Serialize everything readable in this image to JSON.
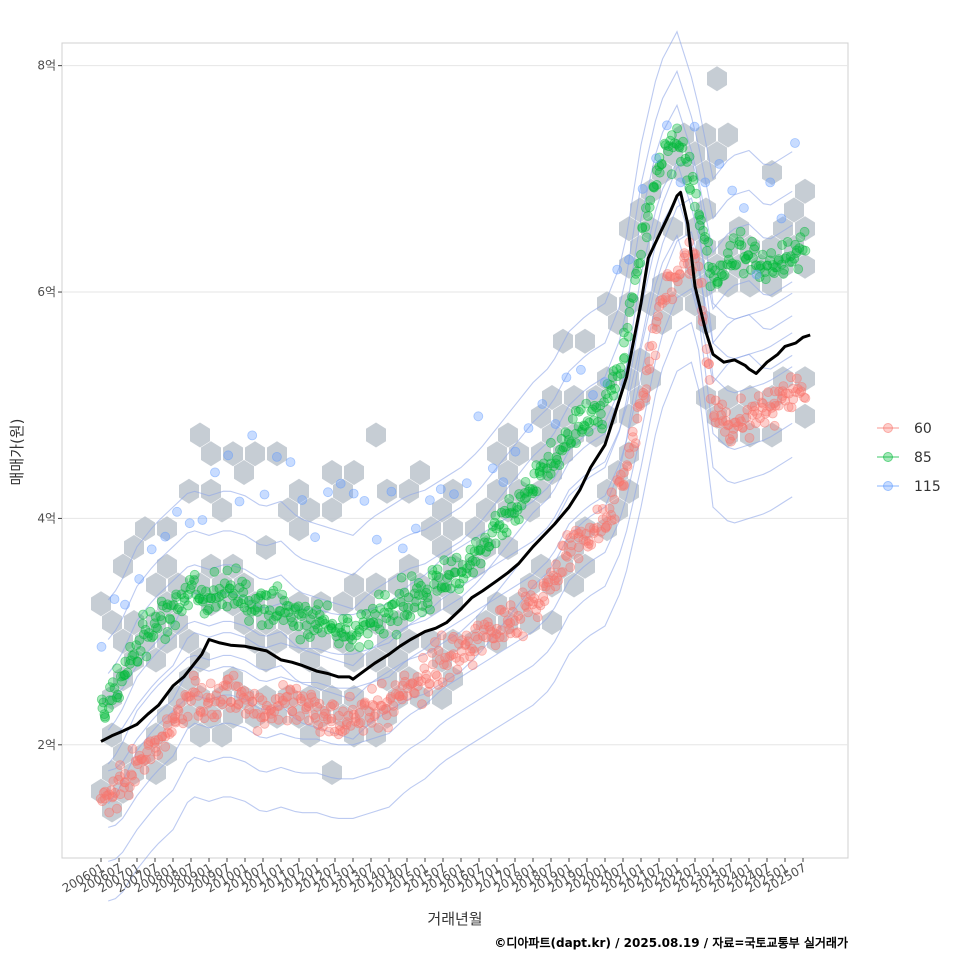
{
  "chart_data": {
    "type": "scatter",
    "xlabel": "거래년월",
    "ylabel": "매매가(원)",
    "caption": "©디아파트(dapt.kr) / 2025.08.19 / 자료=국토교통부 실거래가",
    "legend_position": "right",
    "grid": true,
    "xlim": [
      "2006-01",
      "2025-07"
    ],
    "ylim": [
      1.0,
      8.2
    ],
    "y_ticks": [
      {
        "value": 2,
        "label": "2억"
      },
      {
        "value": 4,
        "label": "4억"
      },
      {
        "value": 6,
        "label": "6억"
      },
      {
        "value": 8,
        "label": "8억"
      }
    ],
    "x_tick_labels": [
      "200601",
      "200607",
      "200701",
      "200707",
      "200801",
      "200807",
      "200901",
      "200907",
      "201001",
      "201007",
      "201101",
      "201107",
      "201201",
      "201207",
      "201301",
      "201307",
      "201401",
      "201407",
      "201501",
      "201507",
      "201601",
      "201607",
      "201701",
      "201707",
      "201801",
      "201807",
      "201901",
      "201907",
      "202001",
      "202007",
      "202101",
      "202107",
      "202201",
      "202207",
      "202301",
      "202307",
      "202401",
      "202407",
      "202501",
      "202507"
    ],
    "series": [
      {
        "name": "60",
        "color": "#f8766d",
        "trend": [
          [
            2006.0,
            1.5
          ],
          [
            2006.5,
            1.55
          ],
          [
            2007.0,
            1.8
          ],
          [
            2007.5,
            2.0
          ],
          [
            2008.0,
            2.15
          ],
          [
            2008.5,
            2.45
          ],
          [
            2009.0,
            2.4
          ],
          [
            2009.5,
            2.45
          ],
          [
            2010.0,
            2.4
          ],
          [
            2010.5,
            2.3
          ],
          [
            2011.0,
            2.35
          ],
          [
            2011.5,
            2.3
          ],
          [
            2012.0,
            2.3
          ],
          [
            2012.5,
            2.25
          ],
          [
            2013.0,
            2.25
          ],
          [
            2013.5,
            2.3
          ],
          [
            2014.0,
            2.35
          ],
          [
            2014.5,
            2.5
          ],
          [
            2015.0,
            2.6
          ],
          [
            2015.5,
            2.75
          ],
          [
            2016.0,
            2.85
          ],
          [
            2016.5,
            2.95
          ],
          [
            2017.0,
            3.05
          ],
          [
            2017.5,
            3.15
          ],
          [
            2018.0,
            3.25
          ],
          [
            2018.5,
            3.4
          ],
          [
            2019.0,
            3.7
          ],
          [
            2019.5,
            3.85
          ],
          [
            2020.0,
            3.95
          ],
          [
            2020.5,
            4.3
          ],
          [
            2021.0,
            5.0
          ],
          [
            2021.5,
            5.8
          ],
          [
            2022.0,
            6.2
          ],
          [
            2022.5,
            6.3
          ],
          [
            2023.0,
            5.0
          ],
          [
            2023.5,
            4.85
          ],
          [
            2024.0,
            4.9
          ],
          [
            2024.5,
            4.95
          ],
          [
            2025.0,
            5.05
          ],
          [
            2025.5,
            5.15
          ]
        ]
      },
      {
        "name": "85",
        "color": "#00ba38",
        "trend": [
          [
            2006.0,
            2.3
          ],
          [
            2006.5,
            2.5
          ],
          [
            2007.0,
            2.85
          ],
          [
            2007.5,
            3.05
          ],
          [
            2008.0,
            3.2
          ],
          [
            2008.5,
            3.35
          ],
          [
            2009.0,
            3.3
          ],
          [
            2009.5,
            3.35
          ],
          [
            2010.0,
            3.3
          ],
          [
            2010.5,
            3.2
          ],
          [
            2011.0,
            3.25
          ],
          [
            2011.5,
            3.1
          ],
          [
            2012.0,
            3.05
          ],
          [
            2012.5,
            3.0
          ],
          [
            2013.0,
            2.95
          ],
          [
            2013.5,
            3.1
          ],
          [
            2014.0,
            3.2
          ],
          [
            2014.5,
            3.3
          ],
          [
            2015.0,
            3.35
          ],
          [
            2015.5,
            3.45
          ],
          [
            2016.0,
            3.55
          ],
          [
            2016.5,
            3.7
          ],
          [
            2017.0,
            3.9
          ],
          [
            2017.5,
            4.1
          ],
          [
            2018.0,
            4.3
          ],
          [
            2018.5,
            4.45
          ],
          [
            2019.0,
            4.75
          ],
          [
            2019.5,
            4.9
          ],
          [
            2020.0,
            5.0
          ],
          [
            2020.5,
            5.4
          ],
          [
            2021.0,
            6.4
          ],
          [
            2021.5,
            7.1
          ],
          [
            2022.0,
            7.4
          ],
          [
            2022.5,
            6.9
          ],
          [
            2023.0,
            6.1
          ],
          [
            2023.5,
            6.3
          ],
          [
            2024.0,
            6.35
          ],
          [
            2024.5,
            6.2
          ],
          [
            2025.0,
            6.3
          ],
          [
            2025.5,
            6.4
          ]
        ]
      },
      {
        "name": "115",
        "color": "#619cff",
        "trend": [
          [
            2006.0,
            3.0
          ],
          [
            2007.0,
            3.6
          ],
          [
            2008.0,
            4.0
          ],
          [
            2009.0,
            4.45
          ],
          [
            2010.0,
            4.4
          ],
          [
            2011.0,
            4.3
          ],
          [
            2012.0,
            4.0
          ],
          [
            2013.0,
            4.05
          ],
          [
            2014.0,
            4.1
          ],
          [
            2015.0,
            4.15
          ],
          [
            2016.0,
            4.3
          ],
          [
            2017.0,
            4.5
          ],
          [
            2018.0,
            4.75
          ],
          [
            2019.0,
            5.2
          ],
          [
            2020.0,
            5.5
          ],
          [
            2021.0,
            6.9
          ],
          [
            2022.0,
            7.1
          ],
          [
            2023.0,
            7.4
          ],
          [
            2024.0,
            6.5
          ],
          [
            2025.0,
            6.85
          ]
        ]
      }
    ],
    "overall_trend_line": {
      "color": "#000000",
      "points": [
        [
          2006.0,
          2.03
        ],
        [
          2006.3,
          2.08
        ],
        [
          2006.6,
          2.12
        ],
        [
          2007.0,
          2.18
        ],
        [
          2007.3,
          2.27
        ],
        [
          2007.6,
          2.35
        ],
        [
          2008.0,
          2.52
        ],
        [
          2008.3,
          2.6
        ],
        [
          2008.6,
          2.72
        ],
        [
          2008.8,
          2.8
        ],
        [
          2009.0,
          2.93
        ],
        [
          2009.3,
          2.9
        ],
        [
          2009.6,
          2.88
        ],
        [
          2010.0,
          2.87
        ],
        [
          2010.3,
          2.85
        ],
        [
          2010.6,
          2.83
        ],
        [
          2011.0,
          2.75
        ],
        [
          2011.3,
          2.73
        ],
        [
          2011.6,
          2.7
        ],
        [
          2012.0,
          2.65
        ],
        [
          2012.3,
          2.63
        ],
        [
          2012.6,
          2.6
        ],
        [
          2012.9,
          2.6
        ],
        [
          2013.0,
          2.58
        ],
        [
          2013.3,
          2.65
        ],
        [
          2013.6,
          2.72
        ],
        [
          2014.0,
          2.8
        ],
        [
          2014.3,
          2.87
        ],
        [
          2014.6,
          2.93
        ],
        [
          2015.0,
          3.0
        ],
        [
          2015.3,
          3.03
        ],
        [
          2015.6,
          3.08
        ],
        [
          2016.0,
          3.2
        ],
        [
          2016.3,
          3.3
        ],
        [
          2016.6,
          3.36
        ],
        [
          2017.0,
          3.45
        ],
        [
          2017.3,
          3.52
        ],
        [
          2017.6,
          3.6
        ],
        [
          2018.0,
          3.75
        ],
        [
          2018.3,
          3.85
        ],
        [
          2018.6,
          3.95
        ],
        [
          2019.0,
          4.1
        ],
        [
          2019.3,
          4.25
        ],
        [
          2019.6,
          4.45
        ],
        [
          2020.0,
          4.65
        ],
        [
          2020.3,
          4.95
        ],
        [
          2020.6,
          5.25
        ],
        [
          2021.0,
          5.9
        ],
        [
          2021.2,
          6.3
        ],
        [
          2021.5,
          6.5
        ],
        [
          2021.8,
          6.7
        ],
        [
          2022.0,
          6.85
        ],
        [
          2022.1,
          6.88
        ],
        [
          2022.3,
          6.6
        ],
        [
          2022.5,
          6.05
        ],
        [
          2022.8,
          5.65
        ],
        [
          2023.0,
          5.45
        ],
        [
          2023.3,
          5.38
        ],
        [
          2023.6,
          5.4
        ],
        [
          2023.9,
          5.35
        ],
        [
          2024.0,
          5.32
        ],
        [
          2024.2,
          5.28
        ],
        [
          2024.5,
          5.38
        ],
        [
          2024.8,
          5.45
        ],
        [
          2025.0,
          5.52
        ],
        [
          2025.3,
          5.55
        ],
        [
          2025.5,
          5.6
        ],
        [
          2025.7,
          5.62
        ]
      ]
    },
    "hexbin_color": "#bcc4cc"
  }
}
